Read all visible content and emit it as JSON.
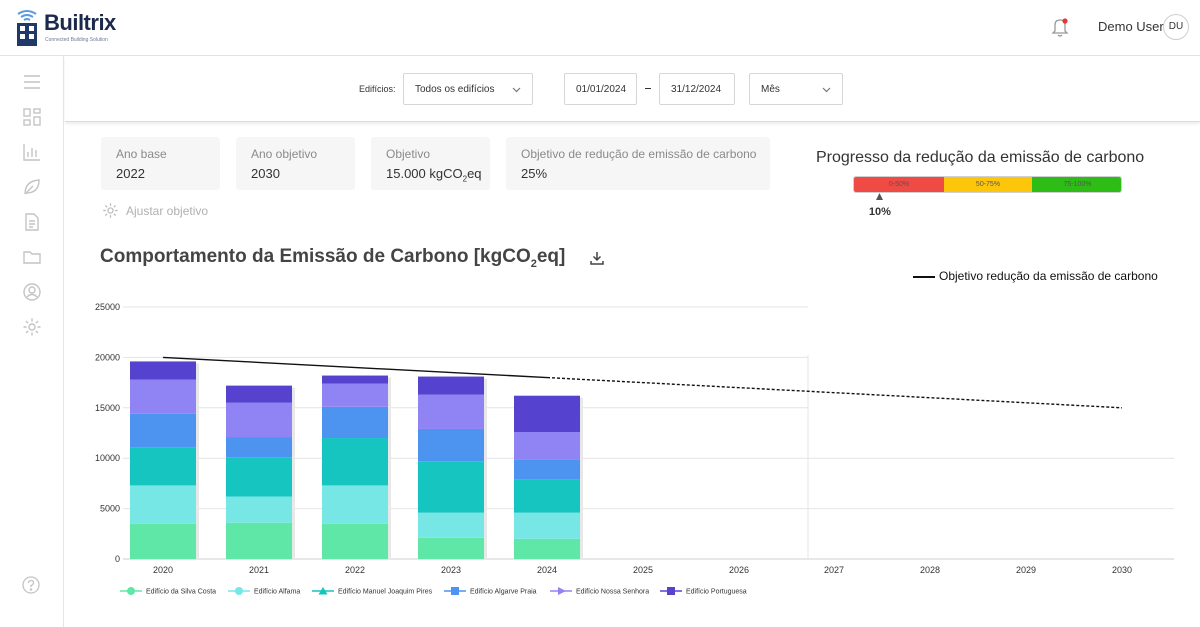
{
  "header": {
    "brand_name": "Builtrix",
    "brand_tagline": "Connected Building Solution",
    "user_name": "Demo User",
    "user_initials": "DU"
  },
  "sidebar": {
    "icons": [
      "menu-icon",
      "dashboard-icon",
      "bar-chart-icon",
      "leaf-icon",
      "document-icon",
      "folder-icon",
      "user-icon",
      "gear-icon"
    ],
    "footer_icon": "help-icon"
  },
  "filters": {
    "buildings_label": "Edifícios:",
    "buildings_value": "Todos os edifícios",
    "date_start": "01/01/2024",
    "date_end": "31/12/2024",
    "granularity": "Mês"
  },
  "cards": [
    {
      "title": "Ano base",
      "value": "2022"
    },
    {
      "title": "Ano objetivo",
      "value": "2030"
    },
    {
      "title": "Objetivo",
      "value": "15.000 kgCO",
      "value_sub": "2",
      "value_suffix": "eq"
    },
    {
      "title": "Objetivo de redução de emissão de carbono",
      "value": "25%"
    }
  ],
  "adjust_label": "Ajustar objetivo",
  "progress": {
    "title": "Progresso da redução da emissão de carbono",
    "segments": [
      {
        "label": "0-50%",
        "color": "#f04a45"
      },
      {
        "label": "50-75%",
        "color": "#fdc60b"
      },
      {
        "label": "75-100%",
        "color": "#2ebd16"
      }
    ],
    "value_label": "10%",
    "value": 10
  },
  "chart_title": {
    "text": "Comportamento da Emissão de Carbono [kgCO",
    "sub": "2",
    "suffix": "eq]"
  },
  "line_legend": "Objetivo redução da emissão de carbono",
  "chart_data": {
    "type": "bar",
    "stacked": true,
    "categories": [
      "2020",
      "2021",
      "2022",
      "2023",
      "2024",
      "2025",
      "2026",
      "2027",
      "2028",
      "2029",
      "2030"
    ],
    "ylim": [
      0,
      25000
    ],
    "yticks": [
      0,
      5000,
      10000,
      15000,
      20000,
      25000
    ],
    "grid": true,
    "series": [
      {
        "name": "Edifício da Silva Costa",
        "color": "#5ee7a6",
        "marker": "circle",
        "values": [
          3500,
          3600,
          3500,
          2100,
          2000,
          0,
          0,
          0,
          0,
          0,
          0
        ]
      },
      {
        "name": "Edifício Alfama",
        "color": "#77e7e6",
        "marker": "circle",
        "values": [
          3800,
          2600,
          3800,
          2500,
          2600,
          0,
          0,
          0,
          0,
          0,
          0
        ]
      },
      {
        "name": "Edifício Manuel Joaquim Pires",
        "color": "#16c4c0",
        "marker": "triangle",
        "values": [
          3800,
          3900,
          4700,
          5100,
          3300,
          0,
          0,
          0,
          0,
          0,
          0
        ]
      },
      {
        "name": "Edifício Algarve Praia",
        "color": "#4d94f0",
        "marker": "square",
        "values": [
          3300,
          2000,
          3100,
          3200,
          2000,
          0,
          0,
          0,
          0,
          0,
          0
        ]
      },
      {
        "name": "Edifício Nossa Senhora",
        "color": "#9084f5",
        "marker": "arrow",
        "values": [
          3400,
          3400,
          2300,
          3400,
          2700,
          0,
          0,
          0,
          0,
          0,
          0
        ]
      },
      {
        "name": "Edifício Portuguesa",
        "color": "#5543cf",
        "marker": "square",
        "values": [
          1800,
          1700,
          800,
          1800,
          3600,
          0,
          0,
          0,
          0,
          0,
          0
        ]
      }
    ],
    "target_line": {
      "name": "Objetivo redução da emissão de carbono",
      "x": [
        "2020",
        "2024",
        "2030"
      ],
      "y": [
        20000,
        18000,
        15000
      ],
      "solid_until": "2024"
    }
  }
}
